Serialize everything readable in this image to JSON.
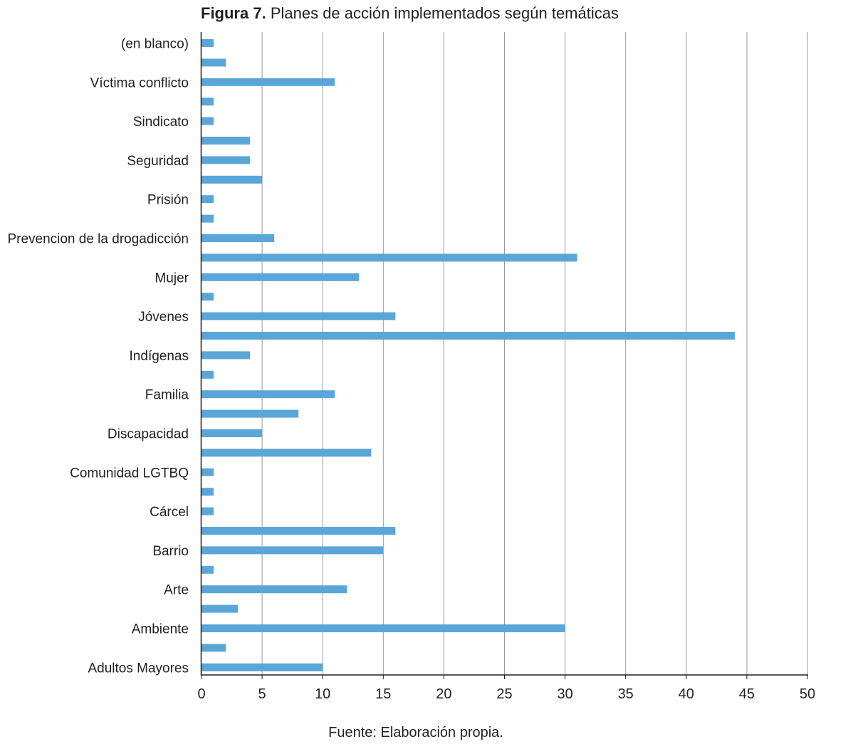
{
  "figure": {
    "label": "Figura 7.",
    "title": "Planes de acción implementados según temáticas",
    "source": "Fuente: Elaboración propia."
  },
  "chart_data": {
    "type": "bar",
    "orientation": "horizontal",
    "title": "Planes de acción implementados según temáticas",
    "xlabel": "",
    "ylabel": "",
    "xlim": [
      0,
      50
    ],
    "xticks": [
      0,
      5,
      10,
      15,
      20,
      25,
      30,
      35,
      40,
      45,
      50
    ],
    "grid": "vertical",
    "bar_color": "#5aa6d8",
    "categories": [
      "(en blanco)",
      "",
      "Víctima conflicto",
      "",
      "Sindicato",
      "",
      "Seguridad",
      "",
      "Prisión",
      "",
      "Prevencion de la drogadicción",
      "",
      "Mujer",
      "",
      "Jóvenes",
      "",
      "Indígenas",
      "",
      "Familia",
      "",
      "Discapacidad",
      "",
      "Comunidad LGTBQ",
      "",
      "Cárcel",
      "",
      "Barrio",
      "",
      "Arte",
      "",
      "Ambiente",
      "",
      "Adultos Mayores"
    ],
    "values": [
      1,
      2,
      11,
      1,
      1,
      4,
      4,
      5,
      1,
      1,
      6,
      31,
      13,
      1,
      16,
      44,
      4,
      1,
      11,
      8,
      5,
      14,
      1,
      1,
      1,
      16,
      15,
      1,
      12,
      3,
      30,
      2,
      10
    ]
  }
}
